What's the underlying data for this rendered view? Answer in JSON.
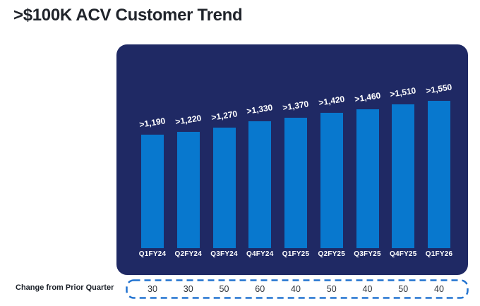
{
  "title": ">$100K ACV Customer Trend",
  "colors": {
    "background": "#FFFFFF",
    "panel": "#1F2964",
    "bar": "#0878CE",
    "bar_label_text": "#FFFFFF",
    "axis_label_text": "#FFFFFF",
    "title_text": "#20242B",
    "change_label_text": "#1A1F27",
    "change_value_text": "#2E3238",
    "dashed_border": "#2273D0"
  },
  "chart_data": {
    "type": "bar",
    "title": ">$100K ACV Customer Trend",
    "categories": [
      "Q1FY24",
      "Q2FY24",
      "Q3FY24",
      "Q4FY24",
      "Q1FY25",
      "Q2FY25",
      "Q3FY25",
      "Q4FY25",
      "Q1FY26"
    ],
    "values": [
      1190,
      1220,
      1270,
      1330,
      1370,
      1420,
      1460,
      1510,
      1550
    ],
    "bar_labels": [
      ">1,190",
      ">1,220",
      ">1,270",
      ">1,330",
      ">1,370",
      ">1,420",
      ">1,460",
      ">1,510",
      ">1,550"
    ],
    "xlabel": "",
    "ylabel": "",
    "ylim": [
      0,
      1700
    ],
    "grid": false,
    "legend": null,
    "bar_label_rotation_deg": -9
  },
  "change_row": {
    "label": "Change from Prior Quarter",
    "values": [
      "30",
      "30",
      "50",
      "60",
      "40",
      "50",
      "40",
      "50",
      "40"
    ]
  }
}
